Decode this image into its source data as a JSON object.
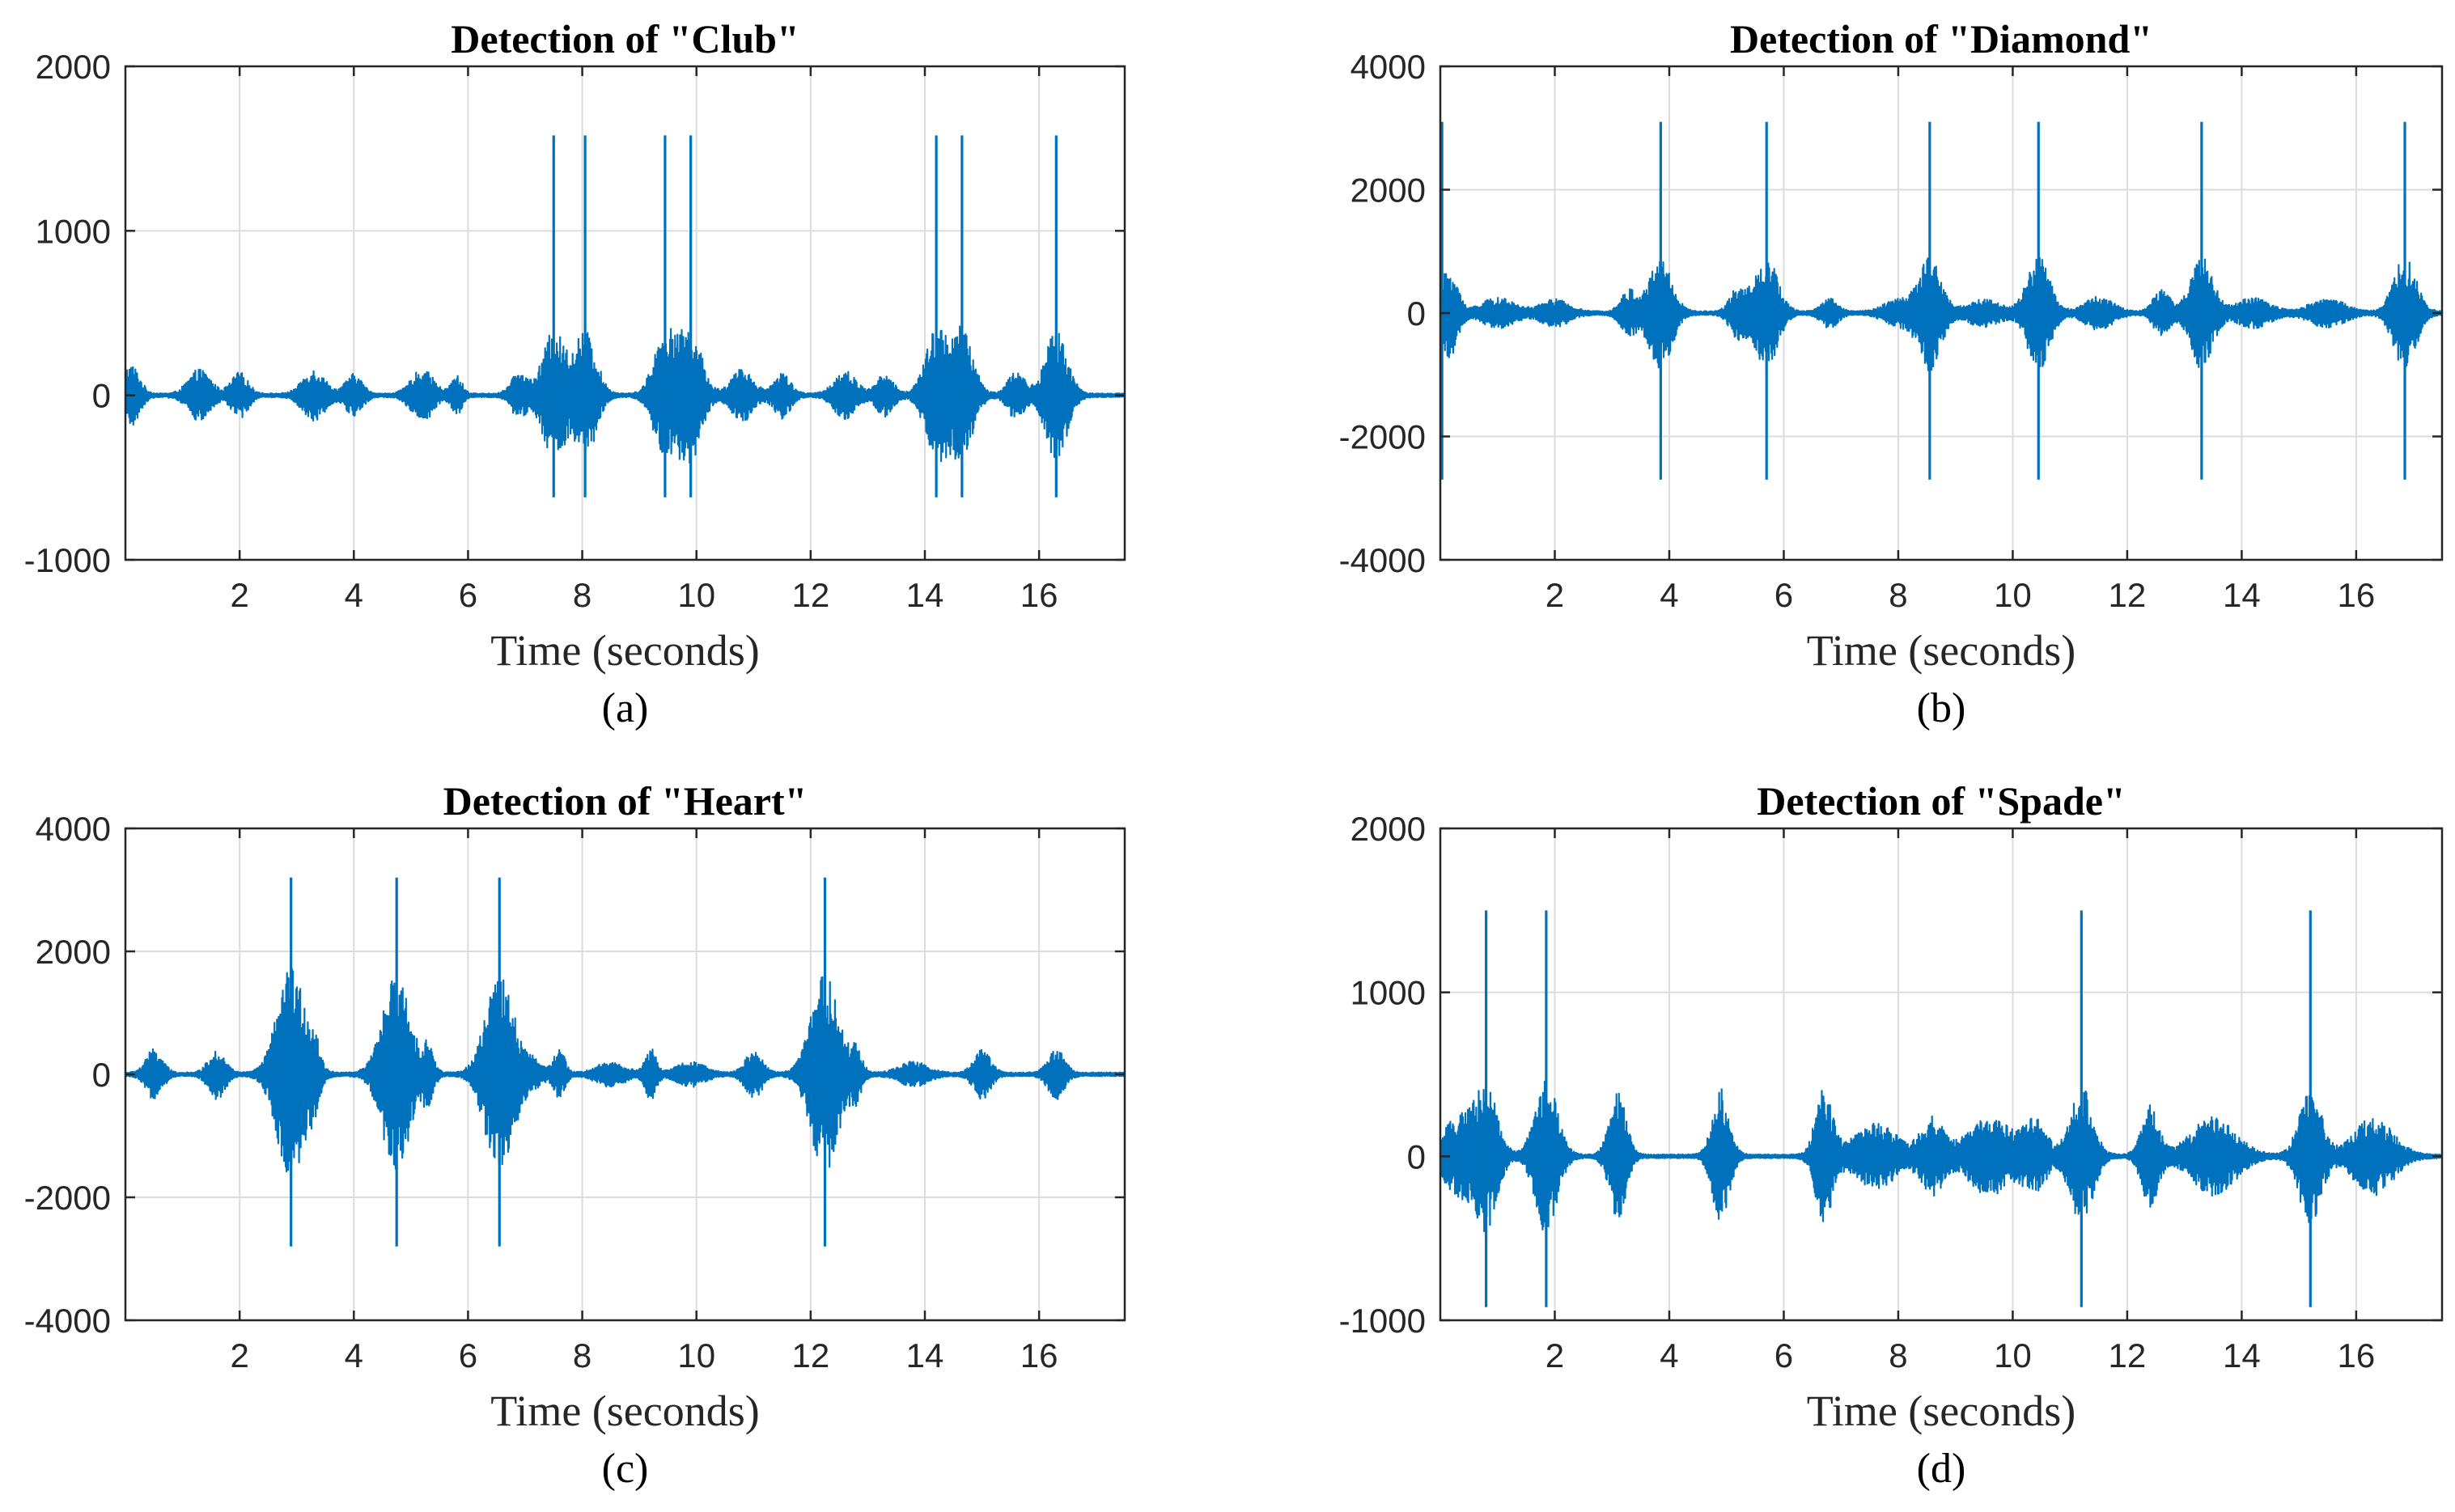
{
  "figure": {
    "description_labels": [
      "(a)",
      "(b)",
      "(c)",
      "(d)"
    ]
  },
  "chart_data": [
    {
      "id": "a",
      "type": "line",
      "title": "Detection of  \"Club\"",
      "xlabel": "Time (seconds)",
      "ylabel": "",
      "caption": "(a)",
      "xlim": [
        0,
        17.5
      ],
      "ylim": [
        -1000,
        2000
      ],
      "xticks": [
        2,
        4,
        6,
        8,
        10,
        12,
        14,
        16
      ],
      "xtick_labels": [
        "2",
        "4",
        "6",
        "8",
        "10",
        "12",
        "14",
        "16"
      ],
      "yticks": [
        -1000,
        0,
        1000,
        2000
      ],
      "ytick_labels": [
        "-1000",
        "0",
        "1000",
        "2000"
      ],
      "grid": true,
      "color": "#0072BD",
      "spikes": [
        {
          "t": 7.5,
          "max": 1580,
          "min": -620
        },
        {
          "t": 8.05,
          "max": 1580,
          "min": -620
        },
        {
          "t": 9.45,
          "max": 1580,
          "min": -620
        },
        {
          "t": 9.9,
          "max": 1580,
          "min": -620
        },
        {
          "t": 14.2,
          "max": 1580,
          "min": -620
        },
        {
          "t": 14.65,
          "max": 1580,
          "min": -620
        },
        {
          "t": 16.3,
          "max": 1580,
          "min": -620
        }
      ],
      "bursts": [
        {
          "t": 0.1,
          "amp": 180,
          "w": 0.3
        },
        {
          "t": 1.3,
          "amp": 150,
          "w": 0.4
        },
        {
          "t": 2.0,
          "amp": 130,
          "w": 0.3
        },
        {
          "t": 3.3,
          "amp": 150,
          "w": 0.4
        },
        {
          "t": 4.0,
          "amp": 120,
          "w": 0.3
        },
        {
          "t": 5.2,
          "amp": 150,
          "w": 0.4
        },
        {
          "t": 5.8,
          "amp": 110,
          "w": 0.2
        },
        {
          "t": 6.9,
          "amp": 130,
          "w": 0.3
        },
        {
          "t": 7.5,
          "amp": 380,
          "w": 0.4
        },
        {
          "t": 8.05,
          "amp": 380,
          "w": 0.4
        },
        {
          "t": 9.45,
          "amp": 380,
          "w": 0.4
        },
        {
          "t": 9.9,
          "amp": 380,
          "w": 0.4
        },
        {
          "t": 10.8,
          "amp": 150,
          "w": 0.4
        },
        {
          "t": 11.5,
          "amp": 130,
          "w": 0.3
        },
        {
          "t": 12.6,
          "amp": 140,
          "w": 0.4
        },
        {
          "t": 13.3,
          "amp": 120,
          "w": 0.3
        },
        {
          "t": 14.2,
          "amp": 380,
          "w": 0.4
        },
        {
          "t": 14.65,
          "amp": 380,
          "w": 0.4
        },
        {
          "t": 15.6,
          "amp": 140,
          "w": 0.3
        },
        {
          "t": 16.3,
          "amp": 380,
          "w": 0.4
        }
      ]
    },
    {
      "id": "b",
      "type": "line",
      "title": "Detection of \"Diamond\"",
      "xlabel": "Time (seconds)",
      "ylabel": "",
      "caption": "(b)",
      "xlim": [
        0,
        17.5
      ],
      "ylim": [
        -4000,
        4000
      ],
      "xticks": [
        2,
        4,
        6,
        8,
        10,
        12,
        14,
        16
      ],
      "xtick_labels": [
        "2",
        "4",
        "6",
        "8",
        "10",
        "12",
        "14",
        "16"
      ],
      "yticks": [
        -4000,
        -2000,
        0,
        2000,
        4000
      ],
      "ytick_labels": [
        "-4000",
        "-2000",
        "0",
        "2000",
        "4000"
      ],
      "grid": true,
      "color": "#0072BD",
      "spikes": [
        {
          "t": 0.03,
          "max": 3100,
          "min": -2700
        },
        {
          "t": 3.85,
          "max": 3100,
          "min": -2700
        },
        {
          "t": 5.7,
          "max": 3100,
          "min": -2700
        },
        {
          "t": 8.55,
          "max": 3100,
          "min": -2700
        },
        {
          "t": 10.45,
          "max": 3100,
          "min": -2700
        },
        {
          "t": 13.3,
          "max": 3100,
          "min": -2700
        },
        {
          "t": 16.85,
          "max": 3100,
          "min": -2700
        }
      ],
      "bursts": [
        {
          "t": 0.15,
          "amp": 700,
          "w": 0.3
        },
        {
          "t": 1.0,
          "amp": 220,
          "w": 0.6
        },
        {
          "t": 2.0,
          "amp": 200,
          "w": 0.5
        },
        {
          "t": 3.3,
          "amp": 350,
          "w": 0.3
        },
        {
          "t": 3.85,
          "amp": 900,
          "w": 0.4
        },
        {
          "t": 5.2,
          "amp": 380,
          "w": 0.3
        },
        {
          "t": 5.7,
          "amp": 900,
          "w": 0.4
        },
        {
          "t": 6.8,
          "amp": 220,
          "w": 0.3
        },
        {
          "t": 8.0,
          "amp": 200,
          "w": 0.5
        },
        {
          "t": 8.55,
          "amp": 900,
          "w": 0.4
        },
        {
          "t": 9.5,
          "amp": 200,
          "w": 0.6
        },
        {
          "t": 10.45,
          "amp": 900,
          "w": 0.4
        },
        {
          "t": 11.5,
          "amp": 250,
          "w": 0.5
        },
        {
          "t": 12.6,
          "amp": 350,
          "w": 0.3
        },
        {
          "t": 13.3,
          "amp": 900,
          "w": 0.4
        },
        {
          "t": 14.2,
          "amp": 220,
          "w": 0.6
        },
        {
          "t": 15.5,
          "amp": 220,
          "w": 0.6
        },
        {
          "t": 16.85,
          "amp": 900,
          "w": 0.4
        }
      ]
    },
    {
      "id": "c",
      "type": "line",
      "title": "Detection of \"Heart\"",
      "xlabel": "Time (seconds)",
      "ylabel": "",
      "caption": "(c)",
      "xlim": [
        0,
        17.5
      ],
      "ylim": [
        -4000,
        4000
      ],
      "xticks": [
        2,
        4,
        6,
        8,
        10,
        12,
        14,
        16
      ],
      "xtick_labels": [
        "2",
        "4",
        "6",
        "8",
        "10",
        "12",
        "14",
        "16"
      ],
      "yticks": [
        -4000,
        -2000,
        0,
        2000,
        4000
      ],
      "ytick_labels": [
        "-4000",
        "-2000",
        "0",
        "2000",
        "4000"
      ],
      "grid": true,
      "color": "#0072BD",
      "spikes": [
        {
          "t": 2.9,
          "max": 3200,
          "min": -2800
        },
        {
          "t": 4.75,
          "max": 3200,
          "min": -2800
        },
        {
          "t": 6.55,
          "max": 3200,
          "min": -2800
        },
        {
          "t": 12.25,
          "max": 3200,
          "min": -2800
        }
      ],
      "bursts": [
        {
          "t": 0.5,
          "amp": 380,
          "w": 0.3
        },
        {
          "t": 1.6,
          "amp": 380,
          "w": 0.3
        },
        {
          "t": 2.9,
          "amp": 1700,
          "w": 0.5
        },
        {
          "t": 3.3,
          "amp": 400,
          "w": 0.2
        },
        {
          "t": 4.75,
          "amp": 1600,
          "w": 0.5
        },
        {
          "t": 5.3,
          "amp": 400,
          "w": 0.2
        },
        {
          "t": 6.55,
          "amp": 1600,
          "w": 0.5
        },
        {
          "t": 7.1,
          "amp": 200,
          "w": 0.4
        },
        {
          "t": 7.6,
          "amp": 380,
          "w": 0.2
        },
        {
          "t": 8.5,
          "amp": 180,
          "w": 0.5
        },
        {
          "t": 9.2,
          "amp": 400,
          "w": 0.2
        },
        {
          "t": 9.9,
          "amp": 180,
          "w": 0.5
        },
        {
          "t": 11.0,
          "amp": 380,
          "w": 0.3
        },
        {
          "t": 12.25,
          "amp": 1600,
          "w": 0.5
        },
        {
          "t": 12.8,
          "amp": 380,
          "w": 0.2
        },
        {
          "t": 13.8,
          "amp": 180,
          "w": 0.5
        },
        {
          "t": 15.0,
          "amp": 380,
          "w": 0.3
        },
        {
          "t": 16.3,
          "amp": 380,
          "w": 0.3
        }
      ]
    },
    {
      "id": "d",
      "type": "line",
      "title": "Detection of \"Spade\"",
      "xlabel": "Time (seconds)",
      "ylabel": "",
      "caption": "(d)",
      "xlim": [
        0,
        17.5
      ],
      "ylim": [
        -1000,
        2000
      ],
      "xticks": [
        2,
        4,
        6,
        8,
        10,
        12,
        14,
        16
      ],
      "xtick_labels": [
        "2",
        "4",
        "6",
        "8",
        "10",
        "12",
        "14",
        "16"
      ],
      "yticks": [
        -1000,
        0,
        1000,
        2000
      ],
      "ytick_labels": [
        "-1000",
        "0",
        "1000",
        "2000"
      ],
      "grid": true,
      "color": "#0072BD",
      "spikes": [
        {
          "t": 0.8,
          "max": 1500,
          "min": -920
        },
        {
          "t": 1.85,
          "max": 1500,
          "min": -920
        },
        {
          "t": 11.2,
          "max": 1500,
          "min": -920
        },
        {
          "t": 15.2,
          "max": 1500,
          "min": -920
        }
      ],
      "bursts": [
        {
          "t": 0.3,
          "amp": 230,
          "w": 0.5
        },
        {
          "t": 0.8,
          "amp": 420,
          "w": 0.4
        },
        {
          "t": 1.85,
          "amp": 460,
          "w": 0.4
        },
        {
          "t": 3.1,
          "amp": 380,
          "w": 0.3
        },
        {
          "t": 4.9,
          "amp": 400,
          "w": 0.3
        },
        {
          "t": 6.7,
          "amp": 400,
          "w": 0.3
        },
        {
          "t": 7.6,
          "amp": 190,
          "w": 0.8
        },
        {
          "t": 8.6,
          "amp": 220,
          "w": 0.4
        },
        {
          "t": 9.6,
          "amp": 230,
          "w": 0.8
        },
        {
          "t": 10.4,
          "amp": 200,
          "w": 0.4
        },
        {
          "t": 11.2,
          "amp": 420,
          "w": 0.4
        },
        {
          "t": 12.4,
          "amp": 300,
          "w": 0.3
        },
        {
          "t": 13.5,
          "amp": 230,
          "w": 0.8
        },
        {
          "t": 15.2,
          "amp": 400,
          "w": 0.4
        },
        {
          "t": 16.3,
          "amp": 230,
          "w": 0.7
        }
      ]
    }
  ]
}
